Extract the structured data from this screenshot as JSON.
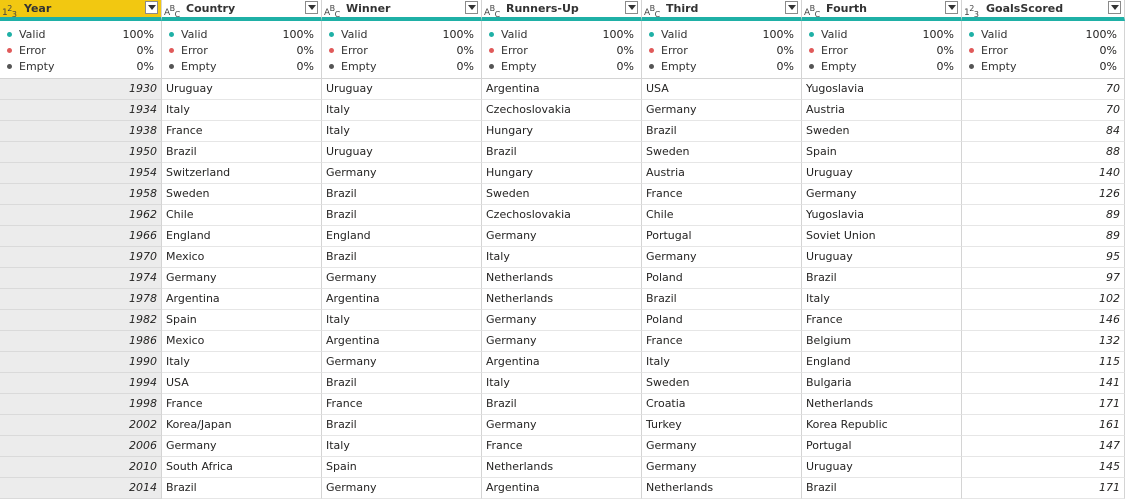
{
  "columns": [
    {
      "key": "year",
      "name": "Year",
      "type_icon": "number-type-icon"
    },
    {
      "key": "country",
      "name": "Country",
      "type_icon": "text-type-icon"
    },
    {
      "key": "winner",
      "name": "Winner",
      "type_icon": "text-type-icon"
    },
    {
      "key": "runners_up",
      "name": "Runners-Up",
      "type_icon": "text-type-icon"
    },
    {
      "key": "third",
      "name": "Third",
      "type_icon": "text-type-icon"
    },
    {
      "key": "fourth",
      "name": "Fourth",
      "type_icon": "text-type-icon"
    },
    {
      "key": "goals",
      "name": "GoalsScored",
      "type_icon": "number-type-icon"
    }
  ],
  "quality": {
    "valid_label": "Valid",
    "valid_pct": "100%",
    "error_label": "Error",
    "error_pct": "0%",
    "empty_label": "Empty",
    "empty_pct": "0%"
  },
  "colors": {
    "valid": "#1fb0a6",
    "error": "#e05a5a",
    "empty": "#555555",
    "selected_header": "#f2c811"
  },
  "rows": [
    [
      "1930",
      "Uruguay",
      "Uruguay",
      "Argentina",
      "USA",
      "Yugoslavia",
      "70"
    ],
    [
      "1934",
      "Italy",
      "Italy",
      "Czechoslovakia",
      "Germany",
      "Austria",
      "70"
    ],
    [
      "1938",
      "France",
      "Italy",
      "Hungary",
      "Brazil",
      "Sweden",
      "84"
    ],
    [
      "1950",
      "Brazil",
      "Uruguay",
      "Brazil",
      "Sweden",
      "Spain",
      "88"
    ],
    [
      "1954",
      "Switzerland",
      "Germany",
      "Hungary",
      "Austria",
      "Uruguay",
      "140"
    ],
    [
      "1958",
      "Sweden",
      "Brazil",
      "Sweden",
      "France",
      "Germany",
      "126"
    ],
    [
      "1962",
      "Chile",
      "Brazil",
      "Czechoslovakia",
      "Chile",
      "Yugoslavia",
      "89"
    ],
    [
      "1966",
      "England",
      "England",
      "Germany",
      "Portugal",
      "Soviet Union",
      "89"
    ],
    [
      "1970",
      "Mexico",
      "Brazil",
      "Italy",
      "Germany",
      "Uruguay",
      "95"
    ],
    [
      "1974",
      "Germany",
      "Germany",
      "Netherlands",
      "Poland",
      "Brazil",
      "97"
    ],
    [
      "1978",
      "Argentina",
      "Argentina",
      "Netherlands",
      "Brazil",
      "Italy",
      "102"
    ],
    [
      "1982",
      "Spain",
      "Italy",
      "Germany",
      "Poland",
      "France",
      "146"
    ],
    [
      "1986",
      "Mexico",
      "Argentina",
      "Germany",
      "France",
      "Belgium",
      "132"
    ],
    [
      "1990",
      "Italy",
      "Germany",
      "Argentina",
      "Italy",
      "England",
      "115"
    ],
    [
      "1994",
      "USA",
      "Brazil",
      "Italy",
      "Sweden",
      "Bulgaria",
      "141"
    ],
    [
      "1998",
      "France",
      "France",
      "Brazil",
      "Croatia",
      "Netherlands",
      "171"
    ],
    [
      "2002",
      "Korea/Japan",
      "Brazil",
      "Germany",
      "Turkey",
      "Korea Republic",
      "161"
    ],
    [
      "2006",
      "Germany",
      "Italy",
      "France",
      "Germany",
      "Portugal",
      "147"
    ],
    [
      "2010",
      "South Africa",
      "Spain",
      "Netherlands",
      "Germany",
      "Uruguay",
      "145"
    ],
    [
      "2014",
      "Brazil",
      "Germany",
      "Argentina",
      "Netherlands",
      "Brazil",
      "171"
    ]
  ]
}
